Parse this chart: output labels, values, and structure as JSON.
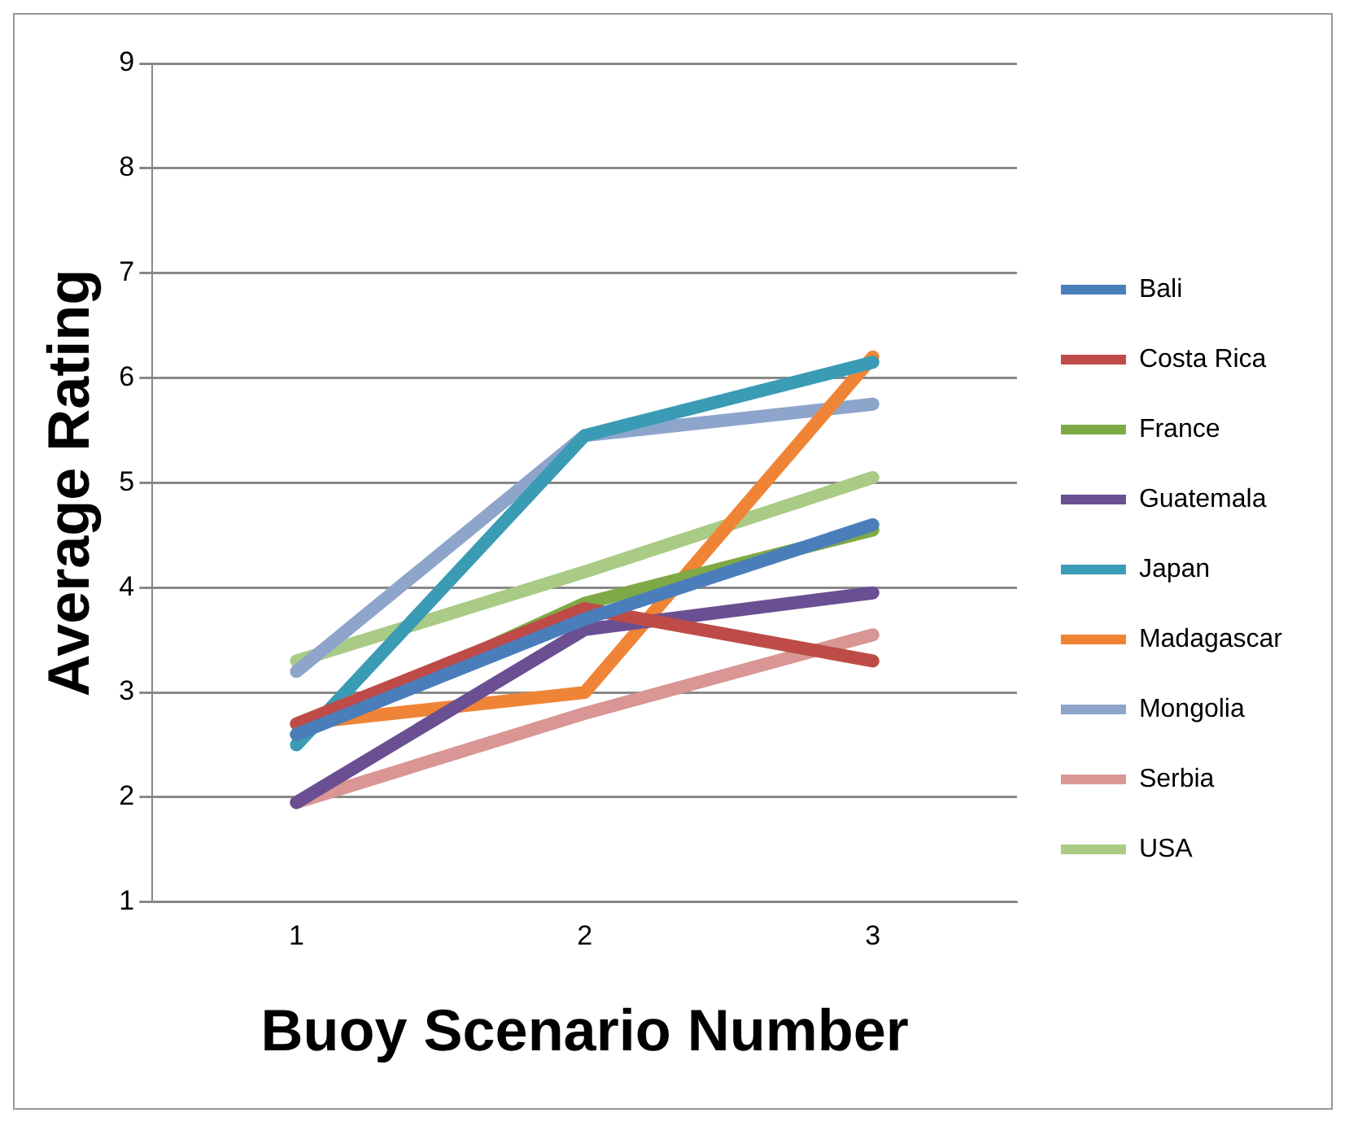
{
  "chart_data": {
    "type": "line",
    "xlabel": "Buoy Scenario Number",
    "ylabel": "Average Rating",
    "categories": [
      "1",
      "2",
      "3"
    ],
    "ylim": [
      1,
      9
    ],
    "yticks": [
      1,
      2,
      3,
      4,
      5,
      6,
      7,
      8,
      9
    ],
    "grid": "y",
    "legend": "right",
    "marker": "none",
    "line_style": "solid",
    "series": [
      {
        "name": "Bali",
        "color": "#4a7ebb",
        "values": [
          2.6,
          3.7,
          4.6
        ]
      },
      {
        "name": "Costa Rica",
        "color": "#be4b48",
        "values": [
          2.7,
          3.8,
          3.3
        ]
      },
      {
        "name": "France",
        "color": "#7fa946",
        "values": [
          2.6,
          3.85,
          4.55
        ]
      },
      {
        "name": "Guatemala",
        "color": "#6a4f92",
        "values": [
          1.95,
          3.6,
          3.95
        ]
      },
      {
        "name": "Japan",
        "color": "#3a9bb5",
        "values": [
          2.5,
          5.45,
          6.15
        ]
      },
      {
        "name": "Madagascar",
        "color": "#f08436",
        "values": [
          2.7,
          3.0,
          6.2
        ]
      },
      {
        "name": "Mongolia",
        "color": "#8ea5cb",
        "values": [
          3.2,
          5.45,
          5.75
        ]
      },
      {
        "name": "Serbia",
        "color": "#d99694",
        "values": [
          1.95,
          2.8,
          3.55
        ]
      },
      {
        "name": "USA",
        "color": "#a9cb85",
        "values": [
          3.3,
          4.15,
          5.05
        ]
      }
    ]
  }
}
